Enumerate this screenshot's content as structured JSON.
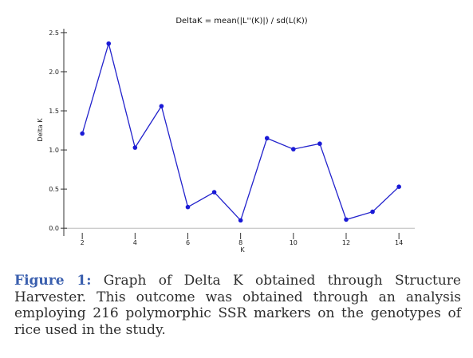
{
  "chart_data": {
    "type": "line",
    "title": "DeltaK = mean(|L''(K)|) / sd(L(K))",
    "xlabel": "K",
    "ylabel": "Delta K",
    "x": [
      2,
      3,
      4,
      5,
      6,
      7,
      8,
      9,
      10,
      11,
      12,
      13,
      14
    ],
    "series": [
      {
        "values": [
          1.21,
          2.36,
          1.03,
          1.56,
          0.27,
          0.46,
          0.1,
          1.15,
          1.01,
          1.08,
          0.11,
          0.21,
          0.53
        ]
      }
    ],
    "xlim": [
      1.3,
      14.6
    ],
    "ylim": [
      -0.1,
      2.55
    ],
    "xticks": [
      2,
      4,
      6,
      8,
      10,
      12,
      14
    ],
    "yticks": [
      0.0,
      0.5,
      1.0,
      1.5,
      2.0,
      2.5
    ],
    "ytick_labels": [
      "0.0",
      "0.5",
      "1.0",
      "1.5",
      "2.0",
      "2.5"
    ],
    "grid": false,
    "line_color": "#2222cc",
    "marker_color": "#1a1ad6"
  },
  "caption": {
    "label": "Figure 1:",
    "text": " Graph of Delta K obtained through Structure Harvester. This outcome was obtained through an analysis employing 216 polymorphic SSR markers on the genotypes of rice used in the study."
  }
}
